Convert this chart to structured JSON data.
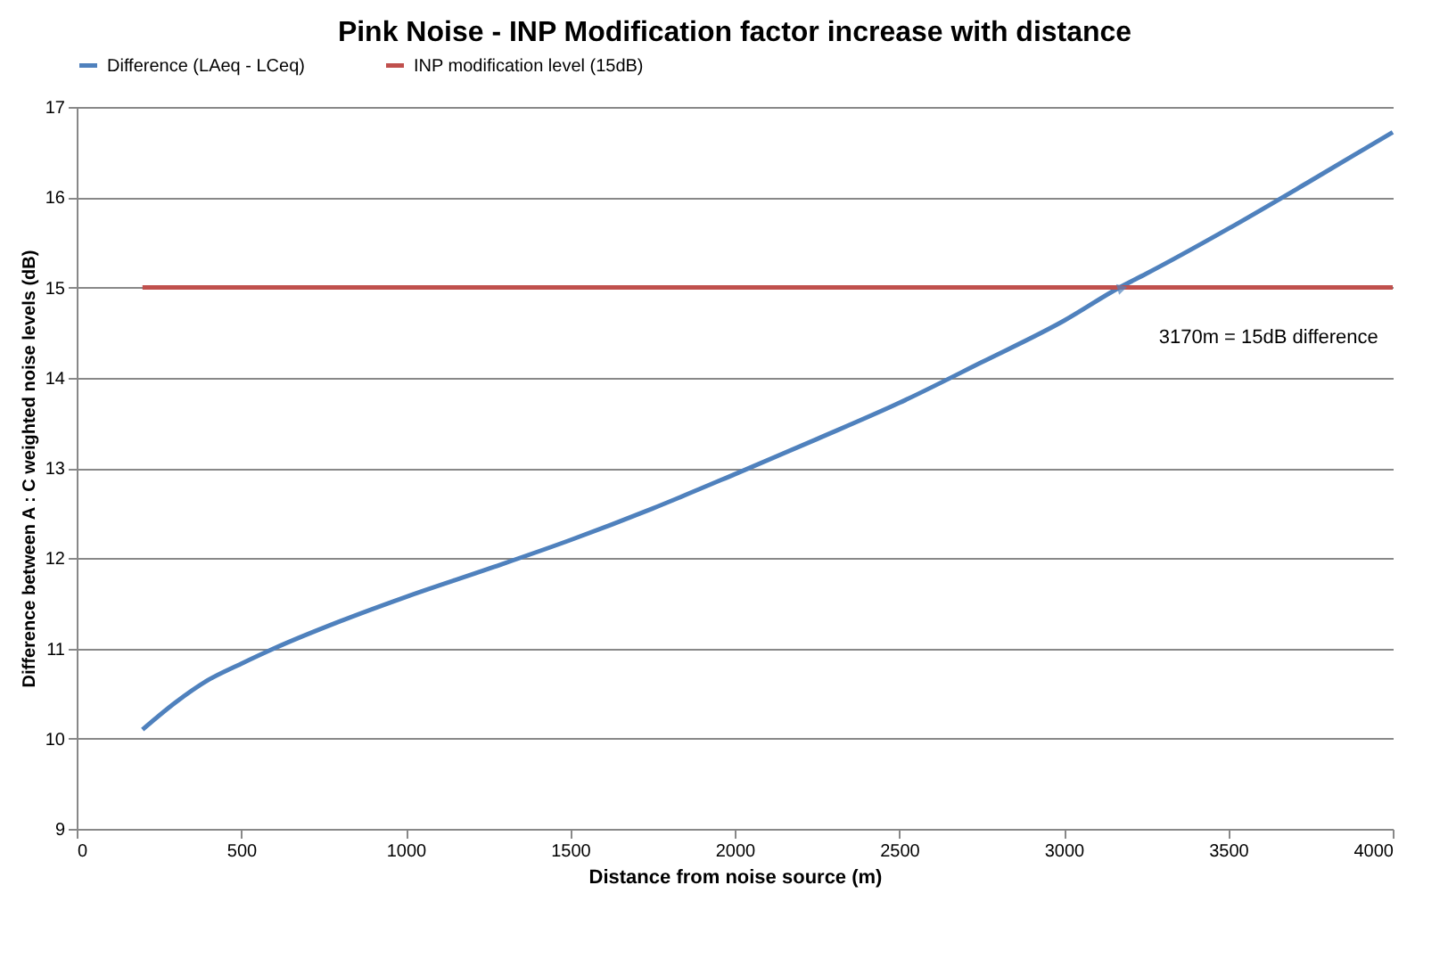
{
  "chart_data": {
    "type": "line",
    "title": "Pink Noise - INP Modification factor increase with distance",
    "xlabel": "Distance from noise source (m)",
    "ylabel": "Difference between A : C weighted noise levels (dB)",
    "series": [
      {
        "name": "Difference (LAeq - LCeq)",
        "color": "#4f81bd",
        "x": [
          200,
          300,
          400,
          500,
          600,
          800,
          1000,
          1250,
          1500,
          1750,
          2000,
          2250,
          2500,
          2750,
          3000,
          3170,
          3250,
          3500,
          3750,
          4000
        ],
        "values": [
          10.1,
          10.4,
          10.65,
          10.83,
          11.0,
          11.3,
          11.57,
          11.88,
          12.2,
          12.55,
          12.93,
          13.32,
          13.72,
          14.17,
          14.63,
          15.0,
          15.15,
          15.65,
          16.18,
          16.72
        ]
      },
      {
        "name": "INP modification level (15dB)",
        "color": "#c0504d",
        "x": [
          200,
          4000
        ],
        "values": [
          15,
          15
        ]
      }
    ],
    "xlim": [
      0,
      4000
    ],
    "xticks": [
      0,
      500,
      1000,
      1500,
      2000,
      2500,
      3000,
      3500,
      4000
    ],
    "ylim": [
      9,
      17
    ],
    "yticks": [
      9,
      10,
      11,
      12,
      13,
      14,
      15,
      16,
      17
    ],
    "grid": "y",
    "legend": "top",
    "annotations": [
      {
        "text": "3170m = 15dB difference",
        "x": 3170,
        "y": 15
      }
    ]
  }
}
